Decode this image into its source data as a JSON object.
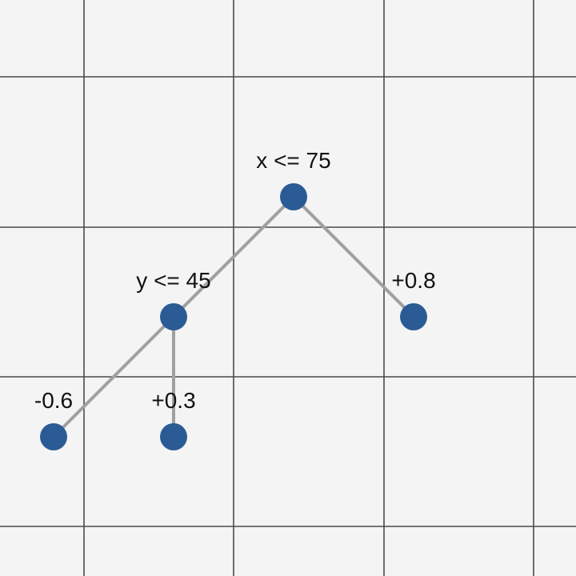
{
  "colors": {
    "background": "#f4f4f4",
    "grid": "#4a4a4a",
    "edge": "#a0a0a0",
    "node": "#2a5b95",
    "text": "#111111"
  },
  "tree": {
    "nodes": [
      {
        "id": "root",
        "label": "x <= 75",
        "kind": "split"
      },
      {
        "id": "left",
        "label": "y <= 45",
        "kind": "split"
      },
      {
        "id": "right",
        "label": "+0.8",
        "kind": "leaf"
      },
      {
        "id": "leaf-ll",
        "label": "-0.6",
        "kind": "leaf"
      },
      {
        "id": "leaf-lr",
        "label": "+0.3",
        "kind": "leaf"
      }
    ],
    "edges": [
      {
        "from": "root",
        "to": "left"
      },
      {
        "from": "root",
        "to": "right"
      },
      {
        "from": "left",
        "to": "leaf-ll"
      },
      {
        "from": "left",
        "to": "leaf-lr"
      }
    ]
  }
}
